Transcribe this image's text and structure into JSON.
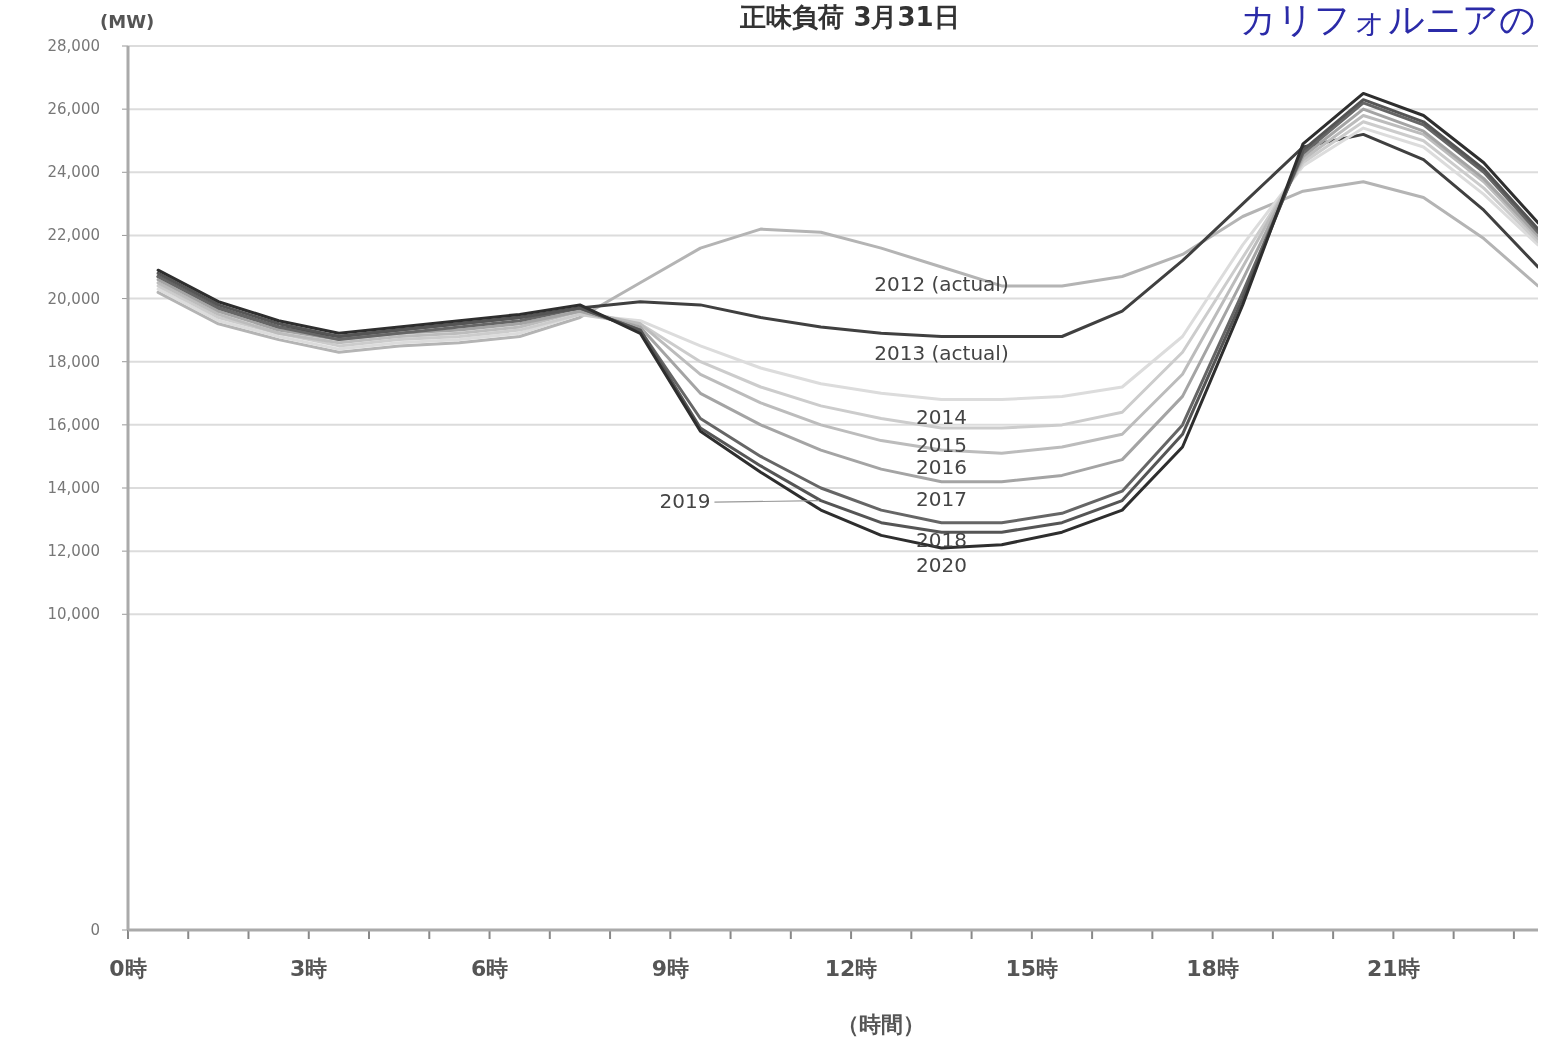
{
  "chart_data": {
    "type": "line",
    "title": "正味負荷 3月31日",
    "annotations": [
      "カリフォルニアの"
    ],
    "xlabel": "（時間）",
    "ylabel": "(MW)",
    "x": [
      0.5,
      1.5,
      2.5,
      3.5,
      4.5,
      5.5,
      6.5,
      7.5,
      8.5,
      9.5,
      10.5,
      11.5,
      12.5,
      13.5,
      14.5,
      15.5,
      16.5,
      17.5,
      18.5,
      19.5,
      20.5,
      21.5,
      22.5,
      23.4
    ],
    "xlim": [
      0,
      23.4
    ],
    "xticks": [
      {
        "value": 0,
        "label": "0時"
      },
      {
        "value": 1,
        "label": null
      },
      {
        "value": 2,
        "label": null
      },
      {
        "value": 3,
        "label": "3時"
      },
      {
        "value": 4,
        "label": null
      },
      {
        "value": 5,
        "label": null
      },
      {
        "value": 6,
        "label": "6時"
      },
      {
        "value": 7,
        "label": null
      },
      {
        "value": 8,
        "label": null
      },
      {
        "value": 9,
        "label": "9時"
      },
      {
        "value": 10,
        "label": null
      },
      {
        "value": 11,
        "label": null
      },
      {
        "value": 12,
        "label": "12時"
      },
      {
        "value": 13,
        "label": null
      },
      {
        "value": 14,
        "label": null
      },
      {
        "value": 15,
        "label": "15時"
      },
      {
        "value": 16,
        "label": null
      },
      {
        "value": 17,
        "label": null
      },
      {
        "value": 18,
        "label": "18時"
      },
      {
        "value": 19,
        "label": null
      },
      {
        "value": 20,
        "label": null
      },
      {
        "value": 21,
        "label": "21時"
      },
      {
        "value": 22,
        "label": null
      },
      {
        "value": 23,
        "label": null
      }
    ],
    "ylim": [
      0,
      28000
    ],
    "yticks": [
      {
        "value": 0,
        "label": "0"
      },
      {
        "value": 10000,
        "label": "10,000"
      },
      {
        "value": 12000,
        "label": "12,000"
      },
      {
        "value": 14000,
        "label": "14,000"
      },
      {
        "value": 16000,
        "label": "16,000"
      },
      {
        "value": 18000,
        "label": "18,000"
      },
      {
        "value": 20000,
        "label": "20,000"
      },
      {
        "value": 22000,
        "label": "22,000"
      },
      {
        "value": 24000,
        "label": "24,000"
      },
      {
        "value": 26000,
        "label": "26,000"
      },
      {
        "value": 28000,
        "label": "28,000"
      }
    ],
    "grid": "y",
    "legend": false,
    "marker": "none",
    "line_style": "solid",
    "series": [
      {
        "name": "2012 (actual)",
        "color": "#b4b4b4",
        "values": [
          20200,
          19200,
          18700,
          18300,
          18500,
          18600,
          18800,
          19400,
          20500,
          21600,
          22200,
          22100,
          21600,
          21000,
          20400,
          20400,
          20700,
          21400,
          22600,
          23400,
          23700,
          23200,
          21900,
          20400
        ]
      },
      {
        "name": "2013 (actual)",
        "color": "#404040",
        "values": [
          20700,
          19700,
          19100,
          18800,
          19000,
          19200,
          19400,
          19700,
          19900,
          19800,
          19400,
          19100,
          18900,
          18800,
          18800,
          18800,
          19600,
          21200,
          23000,
          24800,
          25200,
          24400,
          22800,
          21000
        ]
      },
      {
        "name": "2014",
        "color": "#dcdcdc",
        "values": [
          20300,
          19300,
          18800,
          18400,
          18600,
          18700,
          18900,
          19500,
          19300,
          18500,
          17800,
          17300,
          17000,
          16800,
          16800,
          16900,
          17200,
          18800,
          21700,
          24200,
          25400,
          24800,
          23300,
          21700
        ]
      },
      {
        "name": "2015",
        "color": "#cccccc",
        "values": [
          20400,
          19400,
          18900,
          18500,
          18700,
          18800,
          19000,
          19500,
          19200,
          18000,
          17200,
          16600,
          16200,
          15900,
          15900,
          16000,
          16400,
          18300,
          21300,
          24300,
          25600,
          25000,
          23500,
          21800
        ]
      },
      {
        "name": "2016",
        "color": "#bcbcbc",
        "values": [
          20500,
          19500,
          18900,
          18600,
          18800,
          18900,
          19100,
          19600,
          19200,
          17600,
          16700,
          16000,
          15500,
          15200,
          15100,
          15300,
          15700,
          17600,
          21000,
          24400,
          25800,
          25200,
          23700,
          21900
        ]
      },
      {
        "name": "2017",
        "color": "#a4a4a4",
        "values": [
          20600,
          19600,
          19000,
          18700,
          18900,
          19000,
          19200,
          19600,
          19100,
          17000,
          16000,
          15200,
          14600,
          14200,
          14200,
          14400,
          14900,
          16900,
          20600,
          24500,
          26000,
          25300,
          23800,
          22000
        ]
      },
      {
        "name": "2018",
        "color": "#666666",
        "values": [
          20700,
          19700,
          19100,
          18700,
          18900,
          19100,
          19300,
          19700,
          19000,
          16200,
          15000,
          14000,
          13300,
          12900,
          12900,
          13200,
          13900,
          16000,
          20200,
          24600,
          26200,
          25500,
          24000,
          22100
        ]
      },
      {
        "name": "2019",
        "color": "#555555",
        "values": [
          20800,
          19800,
          19200,
          18800,
          19000,
          19200,
          19400,
          19700,
          19000,
          15900,
          14700,
          13600,
          12900,
          12600,
          12600,
          12900,
          13600,
          15700,
          20000,
          24700,
          26300,
          25600,
          24100,
          22200
        ]
      },
      {
        "name": "2020",
        "color": "#2e2e2e",
        "values": [
          20900,
          19900,
          19300,
          18900,
          19100,
          19300,
          19500,
          19800,
          18900,
          15800,
          14500,
          13300,
          12500,
          12100,
          12200,
          12600,
          13300,
          15300,
          19800,
          24900,
          26500,
          25800,
          24300,
          22400
        ]
      }
    ]
  }
}
